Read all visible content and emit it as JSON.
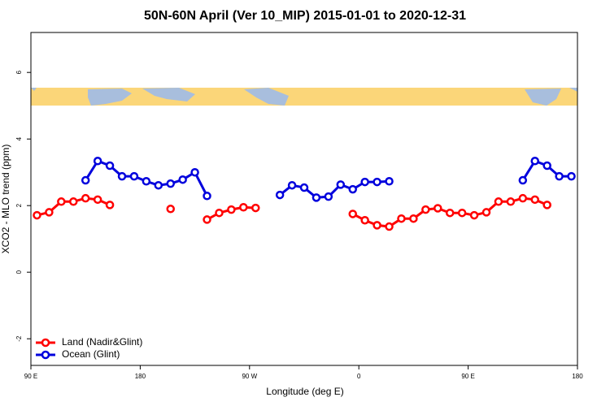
{
  "chart_data": {
    "type": "line",
    "title": "50N-60N April (Ver 10_MIP)   2015-01-01 to 2020-12-31",
    "x_label": "Longitude (deg E)",
    "y_label": "XCO2 - MLO trend (ppm)",
    "x": [
      95,
      105,
      115,
      125,
      135,
      145,
      155,
      165,
      175,
      185,
      195,
      205,
      215,
      225,
      235,
      245,
      255,
      265,
      275,
      285,
      295,
      305,
      315,
      325,
      335,
      345,
      355,
      365,
      375,
      385,
      395,
      405,
      415,
      425,
      435,
      445,
      455,
      465,
      475,
      485,
      495,
      505,
      515,
      525,
      535
    ],
    "series": [
      {
        "name": "Land (Nadir&Glint)",
        "color": "#ff0000",
        "values": [
          1.71,
          1.8,
          2.12,
          2.12,
          2.22,
          2.18,
          2.02,
          null,
          null,
          null,
          null,
          1.9,
          null,
          null,
          1.58,
          1.78,
          1.88,
          1.95,
          1.93,
          null,
          null,
          null,
          null,
          null,
          null,
          null,
          1.75,
          1.56,
          1.41,
          1.37,
          1.61,
          1.61,
          1.88,
          1.92,
          1.78,
          1.78,
          1.71,
          1.8,
          2.12,
          2.12,
          2.22,
          2.18,
          2.02,
          null,
          null
        ]
      },
      {
        "name": "Ocean (Glint)",
        "color": "#0000dd",
        "values": [
          null,
          null,
          null,
          null,
          2.76,
          3.34,
          3.2,
          2.88,
          2.88,
          2.73,
          2.61,
          2.66,
          2.78,
          3.0,
          2.29,
          null,
          null,
          null,
          null,
          null,
          2.32,
          2.61,
          2.54,
          2.24,
          2.27,
          2.63,
          2.49,
          2.71,
          2.71,
          2.73,
          null,
          null,
          null,
          null,
          null,
          null,
          null,
          null,
          null,
          null,
          2.76,
          3.34,
          3.2,
          2.88,
          2.88
        ]
      }
    ],
    "xlim": [
      90,
      540
    ],
    "xticks": [
      {
        "value": 90,
        "label": "90 E"
      },
      180,
      {
        "value": 270,
        "label": "90 W"
      },
      {
        "value": 360,
        "label": "0"
      },
      {
        "value": 450,
        "label": "90 E"
      },
      {
        "value": 540,
        "label": "180"
      }
    ],
    "ylim": [
      -2.8,
      7.2
    ],
    "yticks": [
      -2,
      0,
      2,
      4,
      6
    ],
    "legend": "bottom-left"
  }
}
